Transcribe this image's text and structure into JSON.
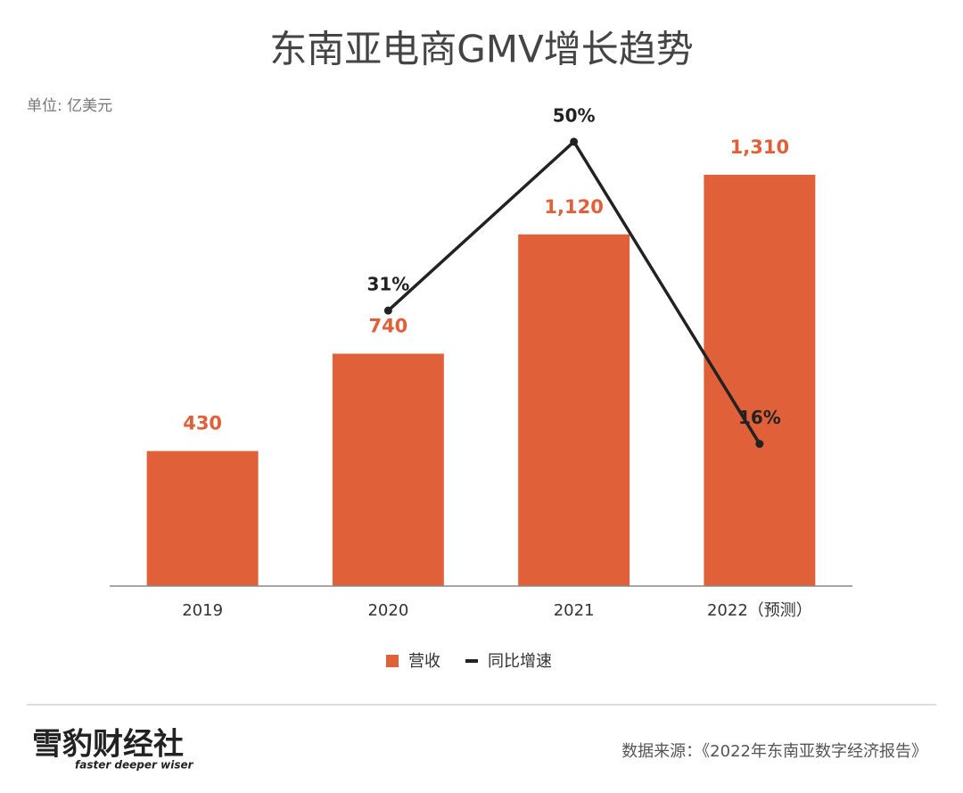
{
  "chart_data": {
    "type": "bar",
    "title": "东南亚电商GMV增长趋势",
    "unit_label": "单位: 亿美元",
    "categories": [
      "2019",
      "2020",
      "2021",
      "2022（预测）"
    ],
    "series": [
      {
        "name": "营收",
        "type": "bar",
        "color": "#e0603a",
        "values": [
          430,
          740,
          1120,
          1310
        ],
        "value_labels": [
          "430",
          "740",
          "1,120",
          "1,310"
        ]
      },
      {
        "name": "同比增速",
        "type": "line",
        "axis": "y2",
        "color": "#222222",
        "values": [
          null,
          31,
          50,
          16
        ],
        "value_labels": [
          null,
          "31%",
          "50%",
          "16%"
        ]
      }
    ],
    "ylim": [
      0,
      1500
    ],
    "y2lim": [
      0,
      53
    ],
    "source": "数据来源：《2022年东南亚数字经济报告》",
    "logo": {
      "name": "雪豹财经社",
      "tagline": "faster deeper wiser"
    }
  }
}
